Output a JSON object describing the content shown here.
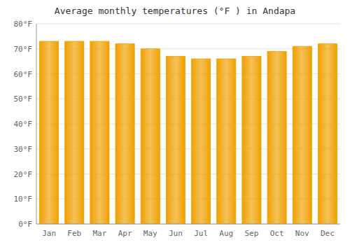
{
  "chart_data": {
    "type": "bar",
    "title": "Average monthly temperatures (°F ) in Andapa",
    "categories": [
      "Jan",
      "Feb",
      "Mar",
      "Apr",
      "May",
      "Jun",
      "Jul",
      "Aug",
      "Sep",
      "Oct",
      "Nov",
      "Dec"
    ],
    "values": [
      73,
      73,
      73,
      72,
      70,
      67,
      66,
      66,
      67,
      69,
      71,
      72
    ],
    "color": "#F0A000",
    "ylim": [
      0,
      80
    ],
    "yticks": [
      {
        "value": 0,
        "label": "0°F"
      },
      {
        "value": 10,
        "label": "10°F"
      },
      {
        "value": 20,
        "label": "20°F"
      },
      {
        "value": 30,
        "label": "30°F"
      },
      {
        "value": 40,
        "label": "40°F"
      },
      {
        "value": 50,
        "label": "50°F"
      },
      {
        "value": 60,
        "label": "60°F"
      },
      {
        "value": 70,
        "label": "70°F"
      },
      {
        "value": 80,
        "label": "80°F"
      }
    ],
    "grid": true
  }
}
